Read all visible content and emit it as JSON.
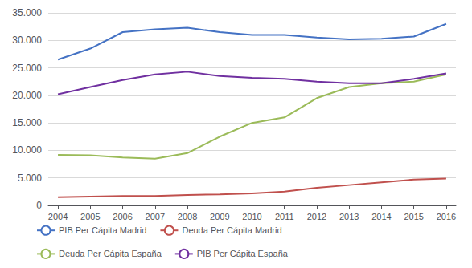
{
  "chart_data": {
    "type": "line",
    "x": [
      2004,
      2005,
      2006,
      2007,
      2008,
      2009,
      2010,
      2011,
      2012,
      2013,
      2014,
      2015,
      2016
    ],
    "xlim": [
      2003.7,
      2016.3
    ],
    "xticks": [
      2004,
      2005,
      2006,
      2007,
      2008,
      2009,
      2010,
      2011,
      2012,
      2013,
      2014,
      2015,
      2016
    ],
    "ylim": [
      0,
      35000
    ],
    "yticks": [
      0,
      {
        "value": 5000,
        "label": "5.000"
      },
      {
        "value": 10000,
        "label": "10.000"
      },
      {
        "value": 15000,
        "label": "15.000"
      },
      {
        "value": 20000,
        "label": "20.000"
      },
      {
        "value": 25000,
        "label": "25.000"
      },
      {
        "value": 30000,
        "label": "30.000"
      },
      {
        "value": 35000,
        "label": "35.000"
      }
    ],
    "grid": true,
    "legend": "lower left",
    "series": [
      {
        "name": "PIB Per Cápita Madrid",
        "color": "#4472C4",
        "values": [
          26500,
          28500,
          31500,
          32000,
          32300,
          31500,
          31000,
          31000,
          30500,
          30200,
          30300,
          30700,
          33000
        ]
      },
      {
        "name": "Deuda Per Cápita Madrid",
        "color": "#C0504D",
        "values": [
          1500,
          1600,
          1700,
          1700,
          1900,
          2000,
          2200,
          2500,
          3200,
          3700,
          4200,
          4700,
          4900
        ]
      },
      {
        "name": "Deuda Per Cápita España",
        "color": "#9BBB59",
        "values": [
          9200,
          9100,
          8700,
          8500,
          9500,
          12500,
          15000,
          16000,
          19500,
          21500,
          22200,
          22500,
          23800
        ]
      },
      {
        "name": "PIB Per Cápita España",
        "color": "#7030A0",
        "values": [
          20200,
          21500,
          22800,
          23800,
          24300,
          23500,
          23200,
          23000,
          22500,
          22200,
          22200,
          23000,
          24000
        ]
      }
    ]
  }
}
